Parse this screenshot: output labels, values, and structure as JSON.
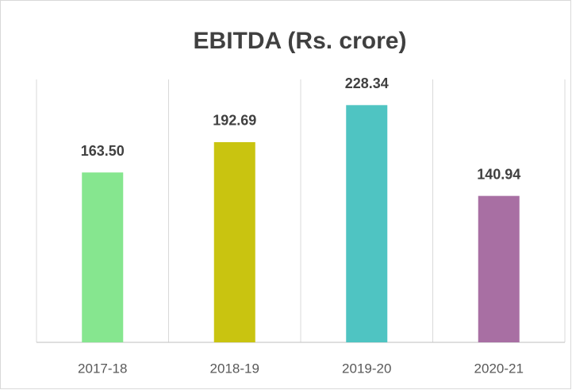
{
  "chart_data": {
    "type": "bar",
    "title": "EBITDA (Rs. crore)",
    "categories": [
      "2017-18",
      "2018-19",
      "2019-20",
      "2020-21"
    ],
    "values": [
      163.5,
      192.69,
      228.34,
      140.94
    ],
    "value_labels": [
      "163.50",
      "192.69",
      "228.34",
      "140.94"
    ],
    "colors": [
      "#86e68f",
      "#c9c410",
      "#4fc4c2",
      "#a86fa3"
    ],
    "ylim": [
      0,
      250
    ]
  }
}
